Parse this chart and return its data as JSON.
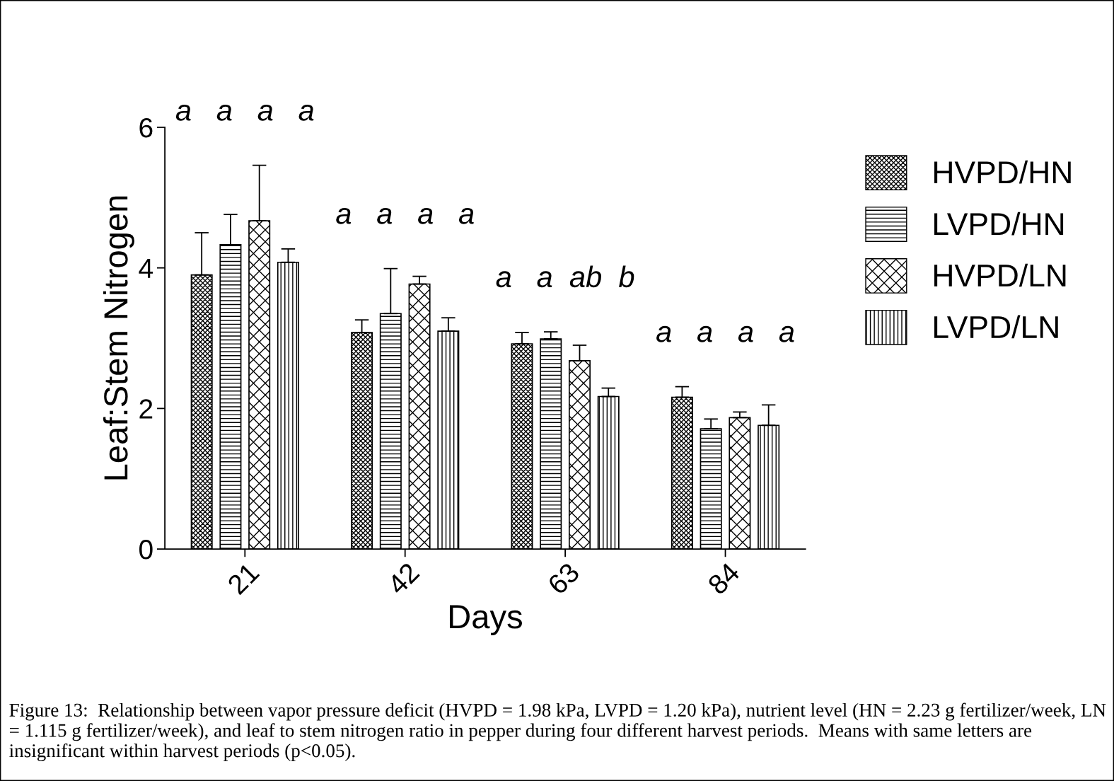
{
  "chart_data": {
    "type": "bar",
    "xlabel": "Days",
    "ylabel": "Leaf:Stem Nitrogen",
    "categories": [
      "21",
      "42",
      "63",
      "84"
    ],
    "series": [
      {
        "name": "HVPD/HN",
        "color": "#000000",
        "values": [
          3.9,
          3.08,
          2.92,
          2.16
        ],
        "errors": [
          0.6,
          0.18,
          0.16,
          0.15
        ]
      },
      {
        "name": "LVPD/HN",
        "color": "#000000",
        "values": [
          4.33,
          3.35,
          2.99,
          1.71
        ],
        "errors": [
          0.43,
          0.64,
          0.1,
          0.14
        ]
      },
      {
        "name": "HVPD/LN",
        "color": "#000000",
        "values": [
          4.67,
          3.77,
          2.68,
          1.87
        ],
        "errors": [
          0.79,
          0.11,
          0.22,
          0.08
        ]
      },
      {
        "name": "LVPD/LN",
        "color": "#000000",
        "values": [
          4.08,
          3.1,
          2.17,
          1.76
        ],
        "errors": [
          0.19,
          0.19,
          0.12,
          0.29
        ]
      }
    ],
    "ylim": [
      0,
      6
    ],
    "yticks": [
      0,
      2,
      4,
      6
    ],
    "grid": false,
    "legend": "top right",
    "annotations": [
      "a   a   a   a",
      "a   a   a   a",
      "a   a  ab  b",
      "a   a   a   a",
      "Figure 13:  Relationship between vapor pressure deficit (HVPD = 1.98 kPa, LVPD = 1.20 kPa), nutrient level (HN = 2.23 g fertilizer/week, LN = 1.115 g fertilizer/week), and leaf to stem nitrogen ratio in pepper during four different harvest periods.  Means with same letters are insignificant within harvest periods (p<0.05)."
    ]
  }
}
